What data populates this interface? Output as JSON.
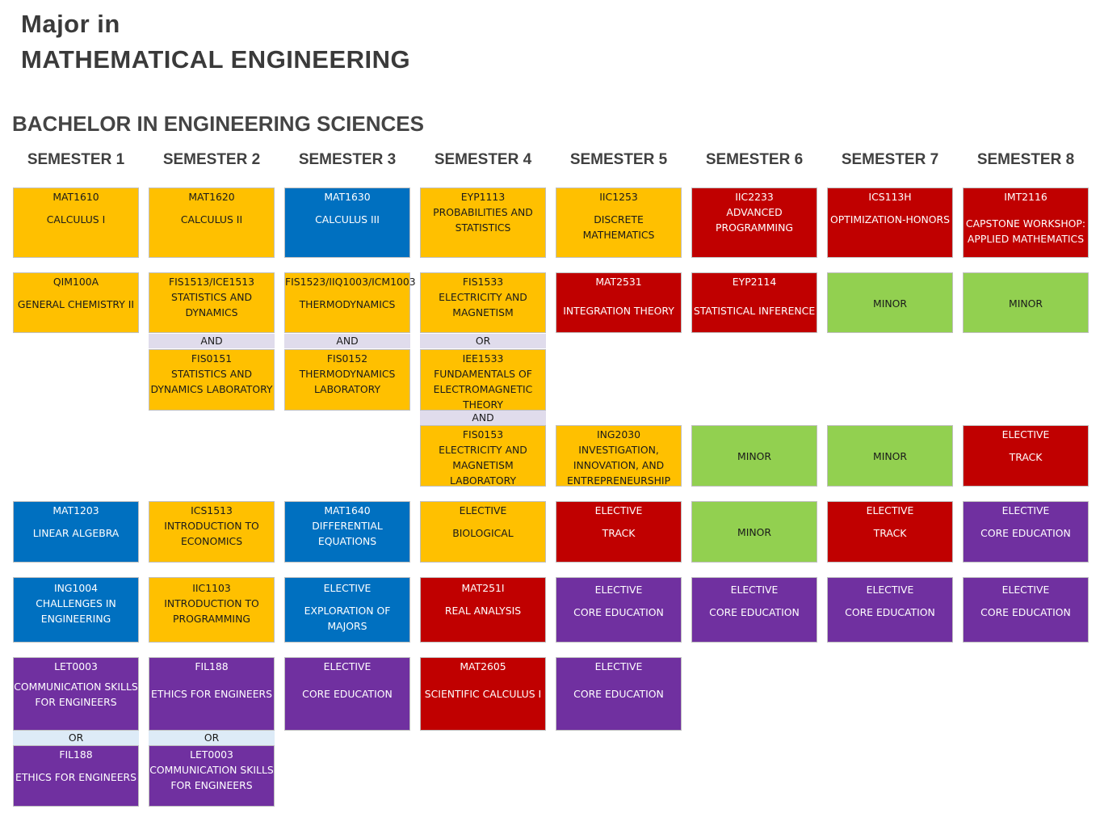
{
  "header": {
    "line1": "Major in",
    "line2": "MATHEMATICAL ENGINEERING",
    "subtitle": "BACHELOR IN ENGINEERING SCIENCES"
  },
  "semesters": [
    "SEMESTER 1",
    "SEMESTER 2",
    "SEMESTER 3",
    "SEMESTER 4",
    "SEMESTER 5",
    "SEMESTER 6",
    "SEMESTER 7",
    "SEMESTER 8"
  ],
  "colors": {
    "yellow": "#ffc000",
    "blue": "#0070c0",
    "red": "#c00000",
    "green": "#92d050",
    "purple": "#7030a0"
  },
  "courses": {
    "s1r1": {
      "code": "MAT1610",
      "name": "CALCULUS I"
    },
    "s2r1": {
      "code": "MAT1620",
      "name": "CALCULUS II"
    },
    "s3r1": {
      "code": "MAT1630",
      "name": "CALCULUS III"
    },
    "s4r1": {
      "code": "EYP1113",
      "name1": "PROBABILITIES AND",
      "name2": "STATISTICS"
    },
    "s5r1": {
      "code": "IIC1253",
      "name": "DISCRETE MATHEMATICS"
    },
    "s6r1": {
      "code": "IIC2233",
      "name1": "ADVANCED",
      "name2": "PROGRAMMING"
    },
    "s7r1": {
      "code": "ICS113H",
      "name": "OPTIMIZATION-HONORS"
    },
    "s8r1": {
      "code": "IMT2116",
      "name1": "CAPSTONE WORKSHOP:",
      "name2": "APPLIED MATHEMATICS"
    },
    "s1r2": {
      "code": "QIM100A",
      "name": "GENERAL CHEMISTRY II"
    },
    "s2r2": {
      "code": "FIS1513/ICE1513",
      "name1": "STATISTICS AND",
      "name2": "DYNAMICS"
    },
    "s2r2b": {
      "code": "FIS0151",
      "name1": "STATISTICS AND",
      "name2": "DYNAMICS LABORATORY"
    },
    "s3r2": {
      "code": "FIS1523/IIQ1003/ICM1003",
      "name": "THERMODYNAMICS"
    },
    "s3r2b": {
      "code": "FIS0152",
      "name1": "THERMODYNAMICS",
      "name2": "LABORATORY"
    },
    "s4r2": {
      "code": "FIS1533",
      "name1": "ELECTRICITY AND",
      "name2": "MAGNETISM"
    },
    "s4r2b": {
      "code": "IEE1533",
      "name1": "FUNDAMENTALS OF",
      "name2": "ELECTROMAGNETIC",
      "name3": "THEORY"
    },
    "s4r2c": {
      "code": "FIS0153",
      "name1": "ELECTRICITY AND",
      "name2": "MAGNETISM",
      "name3": "LABORATORY"
    },
    "s5r2": {
      "code": "MAT2531",
      "name": "INTEGRATION THEORY"
    },
    "s6r2": {
      "code": "EYP2114",
      "name": "STATISTICAL INFERENCE"
    },
    "s7r2": {
      "name": "MINOR"
    },
    "s8r2": {
      "name": "MINOR"
    },
    "s5r3": {
      "code": "ING2030",
      "name1": "INVESTIGATION,",
      "name2": "INNOVATION, AND",
      "name3": "ENTREPRENEURSHIP"
    },
    "s6r3": {
      "name": "MINOR"
    },
    "s7r3": {
      "name": "MINOR"
    },
    "s8r3": {
      "code": "ELECTIVE",
      "name": "TRACK"
    },
    "s1r4": {
      "code": "MAT1203",
      "name": "LINEAR ALGEBRA"
    },
    "s2r4": {
      "code": "ICS1513",
      "name1": "INTRODUCTION TO",
      "name2": "ECONOMICS"
    },
    "s3r4": {
      "code": "MAT1640",
      "name1": "DIFFERENTIAL",
      "name2": "EQUATIONS"
    },
    "s4r4": {
      "code": "ELECTIVE",
      "name": "BIOLOGICAL"
    },
    "s5r4": {
      "code": "ELECTIVE",
      "name": "TRACK"
    },
    "s6r4": {
      "name": "MINOR"
    },
    "s7r4": {
      "code": "ELECTIVE",
      "name": "TRACK"
    },
    "s8r4": {
      "code": "ELECTIVE",
      "name": "CORE EDUCATION"
    },
    "s1r5": {
      "code": "ING1004",
      "name1": "CHALLENGES IN",
      "name2": "ENGINEERING"
    },
    "s2r5": {
      "code": "IIC1103",
      "name1": "INTRODUCTION TO",
      "name2": "PROGRAMMING"
    },
    "s3r5": {
      "code": "ELECTIVE",
      "name": "EXPLORATION OF MAJORS"
    },
    "s4r5": {
      "code": "MAT251I",
      "name": "REAL ANALYSIS"
    },
    "s5r5": {
      "code": "ELECTIVE",
      "name": "CORE EDUCATION"
    },
    "s6r5": {
      "code": "ELECTIVE",
      "name": "CORE EDUCATION"
    },
    "s7r5": {
      "code": "ELECTIVE",
      "name": "CORE EDUCATION"
    },
    "s8r5": {
      "code": "ELECTIVE",
      "name": "CORE EDUCATION"
    },
    "s1r6": {
      "code": "LET0003",
      "name1": "COMMUNICATION SKILLS",
      "name2": "FOR ENGINEERS"
    },
    "s1r6b": {
      "code": "FIL188",
      "name": "ETHICS FOR ENGINEERS"
    },
    "s2r6": {
      "code": "FIL188",
      "name": "ETHICS FOR ENGINEERS"
    },
    "s2r6b": {
      "code": "LET0003",
      "name1": "COMMUNICATION SKILLS",
      "name2": "FOR ENGINEERS"
    },
    "s3r6": {
      "code": "ELECTIVE",
      "name": "CORE EDUCATION"
    },
    "s4r6": {
      "code": "MAT2605",
      "name": "SCIENTIFIC CALCULUS I"
    },
    "s5r6": {
      "code": "ELECTIVE",
      "name": "CORE EDUCATION"
    }
  },
  "connectors": {
    "and": "AND",
    "or": "OR"
  }
}
